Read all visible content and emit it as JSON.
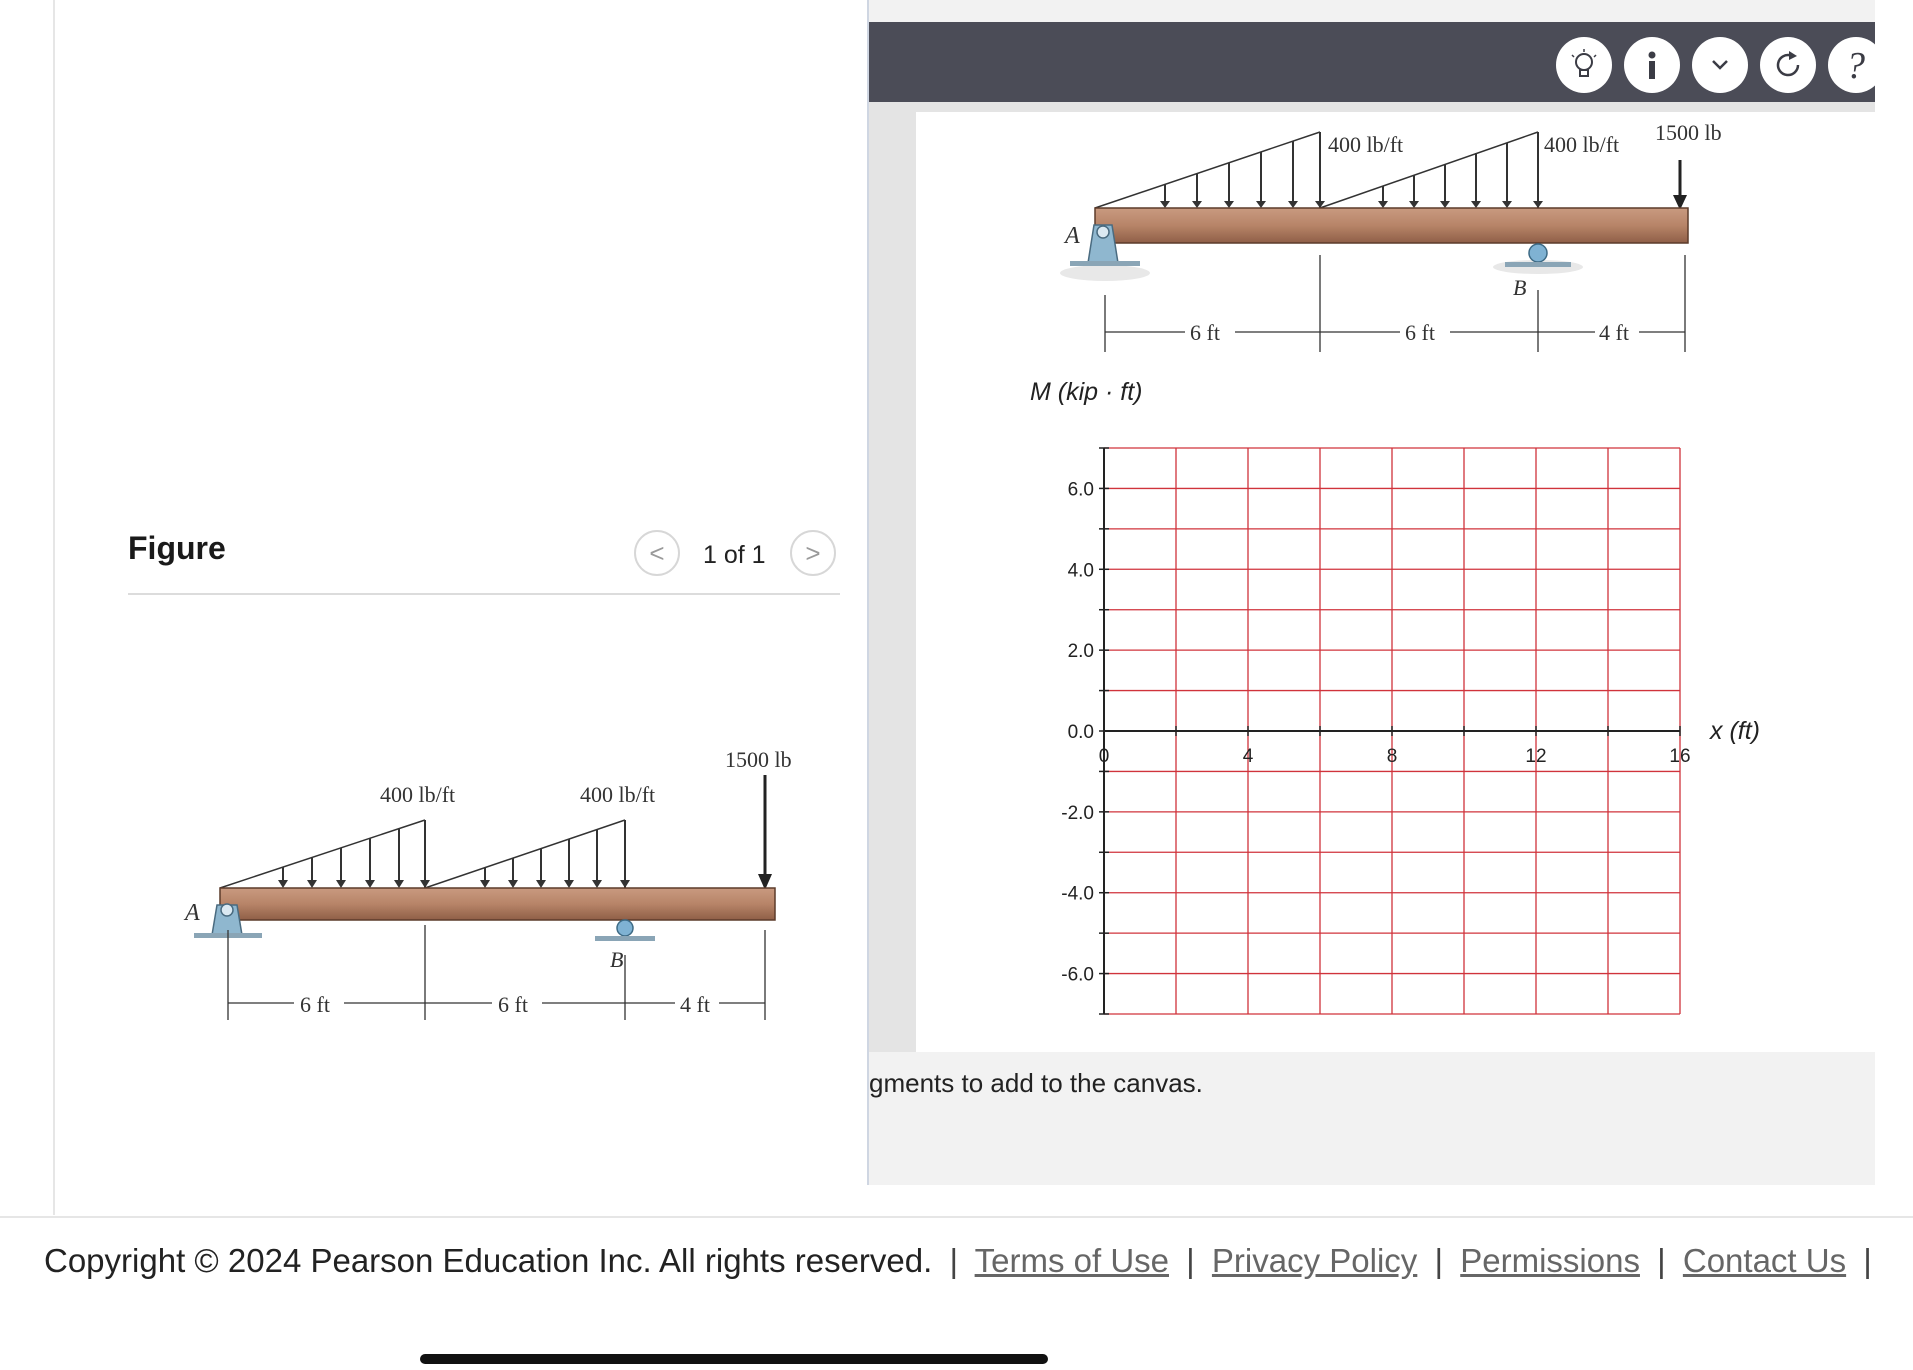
{
  "figure_panel": {
    "title": "Figure",
    "pager": {
      "text": "1 of 1",
      "prev": "<",
      "next": ">"
    }
  },
  "beam": {
    "load1": "400 lb/ft",
    "load2": "400 lb/ft",
    "point_load": "1500 lb",
    "support_a": "A",
    "support_b": "B",
    "dim1": "6 ft",
    "dim2": "6 ft",
    "dim3": "4 ft"
  },
  "toolbar": {
    "icons": [
      "lightbulb-icon",
      "info-icon",
      "chevron-down-icon",
      "redo-icon",
      "help-icon"
    ]
  },
  "chart_data": {
    "type": "line",
    "ylabel": "M (kip · ft)",
    "xlabel": "x (ft)",
    "xlim": [
      0,
      16
    ],
    "ylim": [
      -7,
      7
    ],
    "x_ticks": [
      0,
      4,
      8,
      12,
      16
    ],
    "y_ticks": [
      6.0,
      4.0,
      2.0,
      0.0,
      -2.0,
      -4.0,
      -6.0
    ],
    "y_tick_labels": [
      "6.0",
      "4.0",
      "2.0",
      "0.0",
      "-2.0",
      "-4.0",
      "-6.0"
    ],
    "grid": true,
    "grid_color": "#d0333b",
    "series": []
  },
  "instruction_text": "gments to add to the canvas.",
  "footer": {
    "copyright": "Copyright © 2024  Pearson Education Inc. All rights reserved.",
    "links": [
      "Terms of Use",
      "Privacy Policy",
      "Permissions",
      "Contact Us"
    ]
  }
}
